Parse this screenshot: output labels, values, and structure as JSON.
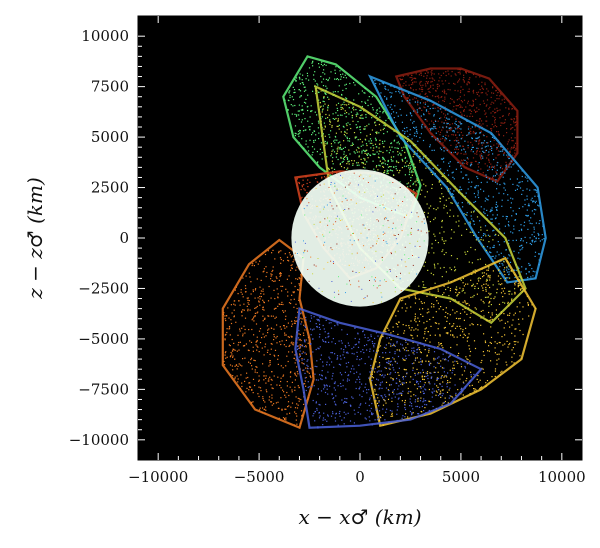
{
  "chart_data": {
    "type": "scatter",
    "title": "",
    "xlabel": "x − x♂ (km)",
    "ylabel": "z − z♂ (km)",
    "xlim": [
      -11000,
      11000
    ],
    "ylim": [
      -11000,
      11000
    ],
    "background_color": "#000000",
    "grid": false,
    "legend": "none",
    "x_ticks": [
      -10000,
      -5000,
      0,
      5000,
      10000
    ],
    "x_tick_labels": [
      "−10000",
      "−5000",
      "0",
      "5000",
      "10000"
    ],
    "y_ticks": [
      10000,
      7500,
      5000,
      2500,
      0,
      -2500,
      -5000,
      -7500,
      -10000
    ],
    "y_tick_labels": [
      "10000",
      "7500",
      "5000",
      "2500",
      "0",
      "−2500",
      "−5000",
      "−7500",
      "−10000"
    ],
    "disk": {
      "center": [
        0,
        0
      ],
      "radius": 3400,
      "color": "#f2fff5"
    },
    "series": [
      {
        "color": "#5ef07a",
        "outline": [
          [
            -2600,
            9000
          ],
          [
            -1200,
            8600
          ],
          [
            800,
            7000
          ],
          [
            2200,
            4800
          ],
          [
            3000,
            2600
          ],
          [
            2500,
            1000
          ],
          [
            0,
            2000
          ],
          [
            -2000,
            3500
          ],
          [
            -3300,
            5000
          ],
          [
            -3800,
            7000
          ]
        ]
      },
      {
        "color": "#8c1f12",
        "outline": [
          [
            1800,
            8000
          ],
          [
            3500,
            8400
          ],
          [
            5000,
            8400
          ],
          [
            6400,
            7900
          ],
          [
            7800,
            6300
          ],
          [
            7800,
            4200
          ],
          [
            6800,
            2800
          ],
          [
            5200,
            3500
          ],
          [
            3500,
            5200
          ],
          [
            2200,
            7000
          ]
        ]
      },
      {
        "color": "#2f9ee8",
        "outline": [
          [
            500,
            8000
          ],
          [
            3500,
            6800
          ],
          [
            6500,
            5200
          ],
          [
            8800,
            2500
          ],
          [
            9200,
            0
          ],
          [
            8700,
            -2000
          ],
          [
            7300,
            -2200
          ],
          [
            5800,
            0
          ],
          [
            4300,
            2500
          ],
          [
            2000,
            5000
          ]
        ]
      },
      {
        "color": "#c9d63a",
        "outline": [
          [
            -2200,
            7500
          ],
          [
            0,
            6500
          ],
          [
            2500,
            4800
          ],
          [
            5000,
            2200
          ],
          [
            7200,
            0
          ],
          [
            8200,
            -2500
          ],
          [
            6500,
            -4200
          ],
          [
            4500,
            -3000
          ],
          [
            2000,
            -2500
          ],
          [
            0,
            -500
          ],
          [
            -1500,
            2500
          ]
        ]
      },
      {
        "color": "#f5c534",
        "outline": [
          [
            2000,
            -3000
          ],
          [
            4500,
            -2200
          ],
          [
            7200,
            -1000
          ],
          [
            8700,
            -3500
          ],
          [
            8000,
            -6000
          ],
          [
            6000,
            -7500
          ],
          [
            3500,
            -8700
          ],
          [
            1000,
            -9300
          ],
          [
            500,
            -7000
          ],
          [
            1000,
            -5000
          ]
        ]
      },
      {
        "color": "#ef7a22",
        "outline": [
          [
            -4000,
            -100
          ],
          [
            -5500,
            -1300
          ],
          [
            -6800,
            -3500
          ],
          [
            -6800,
            -6300
          ],
          [
            -5200,
            -8500
          ],
          [
            -3000,
            -9400
          ],
          [
            -2300,
            -7000
          ],
          [
            -2500,
            -5000
          ],
          [
            -3000,
            -3000
          ],
          [
            -2800,
            -1000
          ]
        ]
      },
      {
        "color": "#4a60d8",
        "outline": [
          [
            -3000,
            -3500
          ],
          [
            -1000,
            -4200
          ],
          [
            1500,
            -4800
          ],
          [
            4000,
            -5500
          ],
          [
            6000,
            -6500
          ],
          [
            4500,
            -8200
          ],
          [
            2500,
            -9000
          ],
          [
            0,
            -9300
          ],
          [
            -2500,
            -9400
          ],
          [
            -2800,
            -7500
          ],
          [
            -3200,
            -5500
          ]
        ]
      },
      {
        "color": "#d8431e",
        "outline": [
          [
            -3200,
            3000
          ],
          [
            -1000,
            3300
          ],
          [
            1000,
            3200
          ],
          [
            2800,
            2200
          ],
          [
            2000,
            0
          ],
          [
            800,
            -1500
          ],
          [
            -500,
            -2000
          ],
          [
            -1800,
            -500
          ],
          [
            -2800,
            1200
          ]
        ]
      }
    ]
  }
}
